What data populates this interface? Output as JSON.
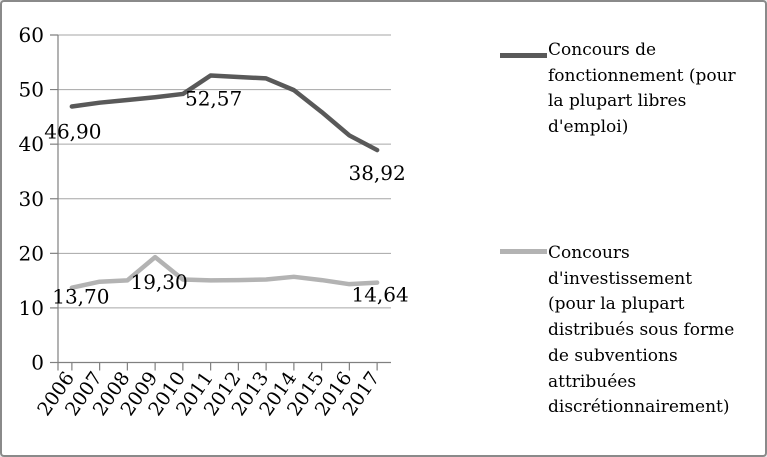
{
  "chart_data": {
    "type": "line",
    "title": "",
    "categories": [
      "2006",
      "2007",
      "2008",
      "2009",
      "2010",
      "2011",
      "2012",
      "2013",
      "2014",
      "2015",
      "2016",
      "2017"
    ],
    "series": [
      {
        "name": "Concours de fonctionnement (pour la plupart libres d'emploi)",
        "color": "#595959",
        "values": [
          46.9,
          47.6,
          48.1,
          48.6,
          49.2,
          52.57,
          52.3,
          52.05,
          49.9,
          45.9,
          41.6,
          38.92
        ]
      },
      {
        "name": "Concours d'investissement (pour la plupart distribués sous forme de subventions attribuées discrétionnairement)",
        "color": "#b3b3b3",
        "values": [
          13.7,
          14.8,
          15.05,
          19.3,
          15.2,
          15.05,
          15.1,
          15.2,
          15.7,
          15.1,
          14.35,
          14.64
        ]
      }
    ],
    "point_labels": [
      {
        "series": 0,
        "index": 0,
        "text": "46,90"
      },
      {
        "series": 0,
        "index": 5,
        "text": "52,57"
      },
      {
        "series": 0,
        "index": 11,
        "text": "38,92"
      },
      {
        "series": 1,
        "index": 0,
        "text": "13,70"
      },
      {
        "series": 1,
        "index": 3,
        "text": "19,30"
      },
      {
        "series": 1,
        "index": 11,
        "text": "14,64"
      }
    ],
    "y_ticks": [
      0,
      10,
      20,
      30,
      40,
      50,
      60
    ],
    "ylim": [
      0,
      60
    ],
    "grid": true,
    "legend_position": "right"
  },
  "legend": {
    "items": [
      {
        "label": "Concours de\nfonctionnement (pour\nla plupart libres\nd'emploi)",
        "color": "#595959"
      },
      {
        "label": "Concours\nd'investissement\n(pour la plupart\ndistribués sous forme\nde subventions\nattribuées\ndiscrétionnairement)",
        "color": "#b3b3b3"
      }
    ]
  },
  "colors": {
    "grid": "#a6a6a6",
    "axis": "#808080",
    "text": "#000000",
    "frame_border": "#8a8a8a",
    "background": "#ffffff"
  }
}
